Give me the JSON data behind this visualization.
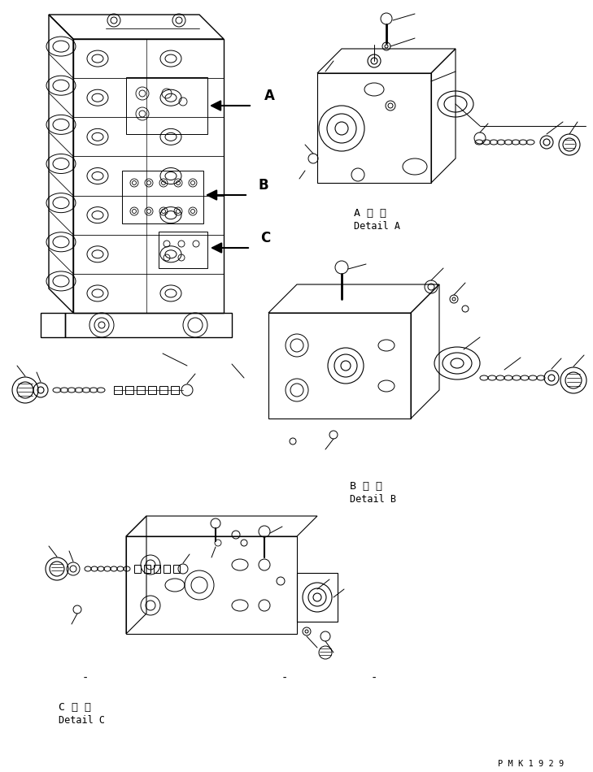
{
  "background_color": "#ffffff",
  "figsize": [
    7.29,
    9.5
  ],
  "dpi": 100,
  "label_A_japanese": "A 詳 細",
  "label_A_english": "Detail A",
  "label_B_japanese": "B 詳 細",
  "label_B_english": "Detail B",
  "label_C_japanese": "C 詳 細",
  "label_C_english": "Detail C",
  "watermark": "P M K 1 9 2 9",
  "arrow_A_label": "A",
  "arrow_B_label": "B",
  "arrow_C_label": "C",
  "line_color": "#000000",
  "text_color": "#000000",
  "font_size_label": 8.5,
  "font_size_watermark": 7.5,
  "font_size_arrow_label": 12
}
